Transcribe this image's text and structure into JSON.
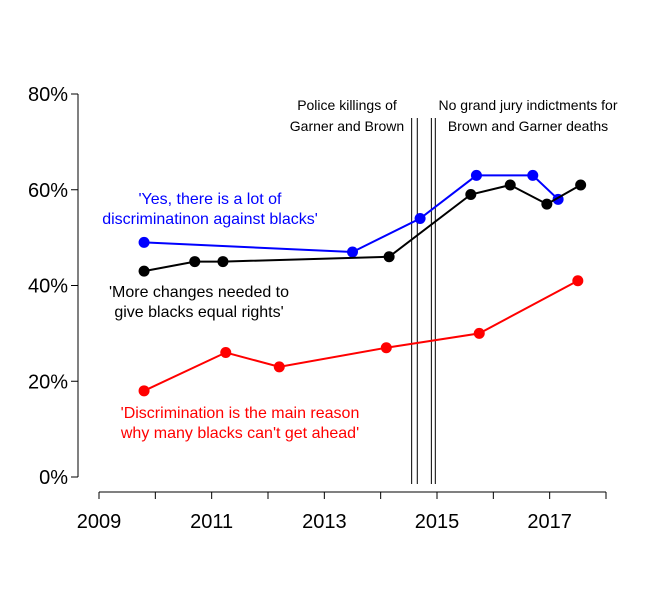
{
  "chart_data": {
    "type": "line",
    "xlim": [
      2009,
      2018
    ],
    "ylim": [
      0,
      80
    ],
    "x_ticks": [
      2009,
      2011,
      2013,
      2015,
      2017
    ],
    "x_tick_labels": [
      "2009",
      "2011",
      "2013",
      "2015",
      "2017"
    ],
    "y_ticks": [
      0,
      20,
      40,
      60,
      80
    ],
    "y_tick_labels": [
      "0%",
      "20%",
      "40%",
      "60%",
      "80%"
    ],
    "grid": false,
    "series": [
      {
        "color": "#0000ff",
        "label_lines": [
          "'Yes, there is a lot of",
          "discriminatinon against blacks'"
        ],
        "points": [
          {
            "x": 2009.8,
            "y": 49
          },
          {
            "x": 2013.5,
            "y": 47
          },
          {
            "x": 2014.7,
            "y": 54
          },
          {
            "x": 2015.7,
            "y": 63
          },
          {
            "x": 2016.7,
            "y": 63
          },
          {
            "x": 2017.15,
            "y": 58
          }
        ]
      },
      {
        "color": "#000000",
        "label_lines": [
          "'More changes needed to",
          "give blacks equal rights'"
        ],
        "points": [
          {
            "x": 2009.8,
            "y": 43
          },
          {
            "x": 2010.7,
            "y": 45
          },
          {
            "x": 2011.2,
            "y": 45
          },
          {
            "x": 2014.15,
            "y": 46
          },
          {
            "x": 2015.6,
            "y": 59
          },
          {
            "x": 2016.3,
            "y": 61
          },
          {
            "x": 2016.95,
            "y": 57
          },
          {
            "x": 2017.55,
            "y": 61
          }
        ]
      },
      {
        "color": "#ff0000",
        "label_lines": [
          "'Discrimination is the main reason",
          "why many blacks can't get ahead'"
        ],
        "points": [
          {
            "x": 2009.8,
            "y": 18
          },
          {
            "x": 2011.25,
            "y": 26
          },
          {
            "x": 2012.2,
            "y": 23
          },
          {
            "x": 2014.1,
            "y": 27
          },
          {
            "x": 2015.75,
            "y": 30
          },
          {
            "x": 2017.5,
            "y": 41
          }
        ]
      }
    ],
    "events": [
      {
        "x_lines": [
          2014.55,
          2014.65
        ],
        "label_lines": [
          "Police killings of",
          "Garner and Brown"
        ]
      },
      {
        "x_lines": [
          2014.9,
          2014.97
        ],
        "label_lines": [
          "No grand jury indictments for",
          "Brown and Garner deaths"
        ]
      }
    ]
  }
}
